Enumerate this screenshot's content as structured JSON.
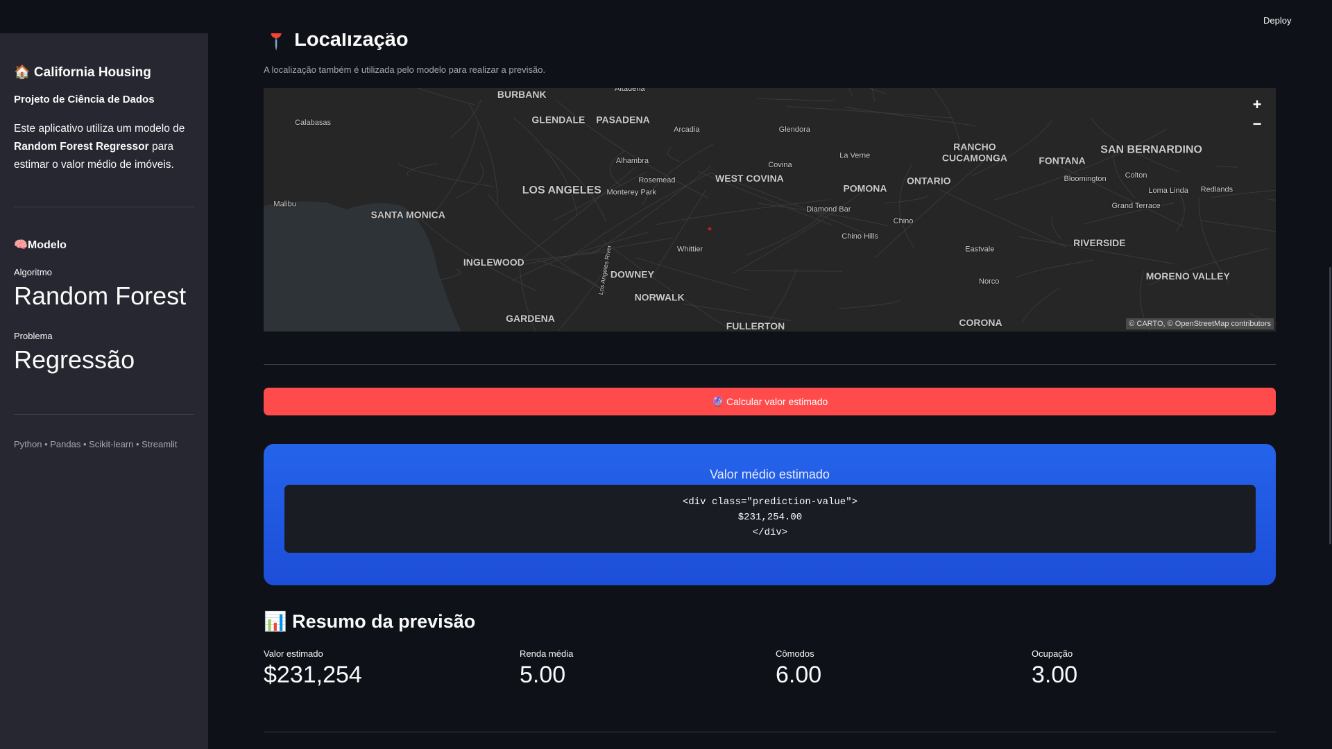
{
  "header": {
    "deploy": "Deploy"
  },
  "sidebar": {
    "title": "🏠 California Housing",
    "subtitle": "Projeto de Ciência de Dados",
    "description": [
      "Este aplicativo utiliza um modelo de ",
      "Random Forest Regressor",
      " para estimar o valor médio de imóveis."
    ],
    "model_heading": "🧠Modelo",
    "metrics": [
      {
        "label": "Algoritmo",
        "value": "Random Forest"
      },
      {
        "label": "Problema",
        "value": "Regressão"
      }
    ],
    "footer": "Python • Pandas • Scikit-learn • Streamlit"
  },
  "main": {
    "section_title": "📍 Localização",
    "caption": "A localização também é utilizada pelo modelo para realizar a previsão.",
    "map": {
      "labels": [
        "Altadena",
        "BURBANK",
        "GLENDALE",
        "PASADENA",
        "Arcadia",
        "Glendora",
        "Calabasas",
        "Alhambra",
        "Covina",
        "La Verne",
        "RANCHO",
        "CUCAMONGA",
        "FONTANA",
        "SAN BERNARDINO",
        "Rosemead",
        "WEST COVINA",
        "POMONA",
        "ONTARIO",
        "Bloomington",
        "Colton",
        "Loma Linda",
        "Redlands",
        "LOS ANGELES",
        "Monterey Park",
        "Malibu",
        "SANTA MONICA",
        "Diamond Bar",
        "Grand Terrace",
        "Chino",
        "Chino Hills",
        "Whittier",
        "Eastvale",
        "RIVERSIDE",
        "INGLEWOOD",
        "DOWNEY",
        "MORENO VALLEY",
        "Norco",
        "NORWALK",
        "GARDENA",
        "FULLERTON",
        "CORONA",
        "Los Angeles River"
      ],
      "attribution": [
        "© CARTO",
        "© OpenStreetMap",
        "contributors"
      ],
      "zoom_in": "+",
      "zoom_out": "−"
    },
    "button": "🔮 Calcular valor estimado",
    "result": {
      "title": "Valor médio estimado",
      "code": [
        "<div class=\"prediction-value\">",
        "$231,254.00",
        "</div>"
      ]
    },
    "summary": {
      "title": "📊 Resumo da previsão",
      "metrics": [
        {
          "label": "Valor estimado",
          "value": "$231,254"
        },
        {
          "label": "Renda média",
          "value": "5.00"
        },
        {
          "label": "Cômodos",
          "value": "6.00"
        },
        {
          "label": "Ocupação",
          "value": "3.00"
        }
      ]
    }
  }
}
